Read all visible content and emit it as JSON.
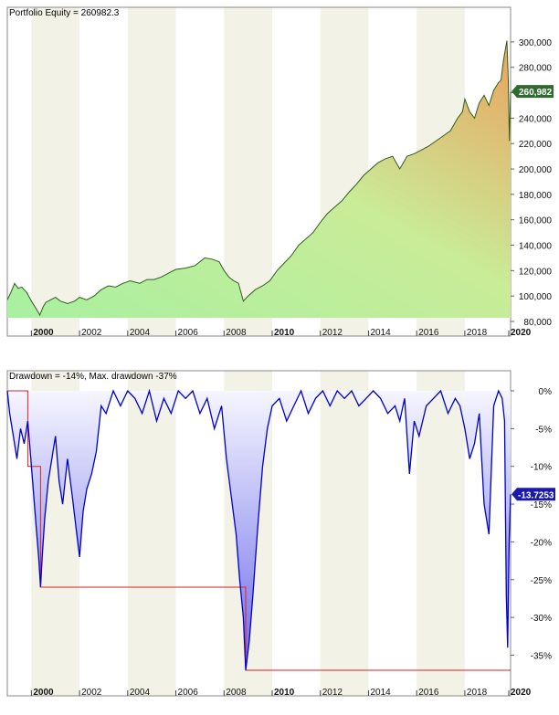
{
  "chart_data": [
    {
      "type": "area",
      "title": "Portfolio Equity = 260982.3",
      "xlabel": "",
      "ylabel": "",
      "xlim": [
        1999.0,
        2019.9
      ],
      "ylim": [
        80000,
        310000
      ],
      "yticks": [
        80000,
        100000,
        120000,
        140000,
        160000,
        180000,
        200000,
        220000,
        240000,
        260000,
        280000,
        300000
      ],
      "ytick_labels": [
        "80,000",
        "100,000",
        "120,000",
        "140,000",
        "160,000",
        "180,000",
        "200,000",
        "220,000",
        "240,000",
        "260,000",
        "280,000",
        "300,000"
      ],
      "xticks": [
        2000,
        2002,
        2004,
        2006,
        2008,
        2010,
        2012,
        2014,
        2016,
        2018,
        2020
      ],
      "xtick_labels": [
        "2000",
        "2002",
        "2004",
        "2006",
        "2008",
        "2010",
        "2012",
        "2014",
        "2016",
        "2018",
        "2020"
      ],
      "grid": false,
      "last_value_label": "260,982",
      "colors": {
        "line": "#2f5f1f",
        "fill_low": "#a8f0a0",
        "fill_high": "#e8a862",
        "badge": "#2f6b2f"
      },
      "series": [
        {
          "x": [
            1999.0,
            1999.15,
            1999.3,
            1999.45,
            1999.6,
            1999.8,
            2000.0,
            2000.2,
            2000.35,
            2000.5,
            2000.6,
            2000.8,
            2001.0,
            2001.2,
            2001.5,
            2001.8,
            2002.0,
            2002.3,
            2002.6,
            2002.9,
            2003.2,
            2003.5,
            2003.8,
            2004.1,
            2004.5,
            2004.8,
            2005.1,
            2005.4,
            2005.7,
            2006.0,
            2006.4,
            2006.8,
            2007.2,
            2007.5,
            2007.8,
            2008.0,
            2008.2,
            2008.4,
            2008.6,
            2008.8,
            2009.0,
            2009.3,
            2009.6,
            2009.9,
            2010.2,
            2010.5,
            2010.8,
            2011.1,
            2011.4,
            2011.7,
            2012.0,
            2012.3,
            2012.6,
            2012.9,
            2013.2,
            2013.5,
            2013.8,
            2014.1,
            2014.4,
            2014.7,
            2015.0,
            2015.3,
            2015.6,
            2015.9,
            2016.2,
            2016.5,
            2016.8,
            2017.1,
            2017.4,
            2017.7,
            2017.9,
            2018.0,
            2018.2,
            2018.4,
            2018.6,
            2018.8,
            2019.0,
            2019.2,
            2019.4,
            2019.5,
            2019.6,
            2019.7,
            2019.75,
            2019.8,
            2019.85,
            2019.9
          ],
          "y": [
            97000,
            103000,
            110000,
            106000,
            107000,
            103000,
            96000,
            90000,
            85000,
            92000,
            95000,
            97000,
            99000,
            96000,
            94000,
            96000,
            99000,
            97000,
            100000,
            105000,
            108000,
            107000,
            110000,
            112000,
            110000,
            113000,
            113000,
            115000,
            118000,
            121000,
            122000,
            124000,
            130000,
            129000,
            127000,
            120000,
            115000,
            112000,
            110000,
            96000,
            100000,
            105000,
            108000,
            112000,
            120000,
            126000,
            132000,
            140000,
            145000,
            150000,
            158000,
            165000,
            170000,
            175000,
            182000,
            188000,
            195000,
            200000,
            205000,
            208000,
            210000,
            200000,
            210000,
            212000,
            215000,
            218000,
            222000,
            226000,
            230000,
            240000,
            245000,
            255000,
            245000,
            240000,
            252000,
            258000,
            250000,
            262000,
            268000,
            270000,
            285000,
            296000,
            301000,
            272000,
            222000,
            261000
          ]
        }
      ]
    },
    {
      "type": "area",
      "title": "Drawdown = -14%, Max. drawdown -37%",
      "xlabel": "",
      "ylabel": "",
      "xlim": [
        1999.0,
        2019.9
      ],
      "ylim": [
        -37,
        0
      ],
      "yticks": [
        0,
        -5,
        -10,
        -15,
        -20,
        -25,
        -30,
        -35
      ],
      "ytick_labels": [
        "0%",
        "-5%",
        "-10%",
        "-15%",
        "-20%",
        "-25%",
        "-30%",
        "-35%"
      ],
      "xticks": [
        2000,
        2002,
        2004,
        2006,
        2008,
        2010,
        2012,
        2014,
        2016,
        2018,
        2020
      ],
      "xtick_labels": [
        "2000",
        "2002",
        "2004",
        "2006",
        "2008",
        "2010",
        "2012",
        "2014",
        "2016",
        "2018",
        "2020"
      ],
      "grid": false,
      "last_value_label": "-13.7253",
      "colors": {
        "line": "#0000cc",
        "fill_top": "#f4f4ff",
        "fill_bottom": "#6b6bea",
        "max_line": "#dd2222",
        "badge": "#1a1aaa"
      },
      "series": [
        {
          "name": "Drawdown",
          "x": [
            1999.0,
            1999.1,
            1999.25,
            1999.4,
            1999.55,
            1999.7,
            1999.85,
            2000.0,
            2000.1,
            2000.2,
            2000.3,
            2000.38,
            2000.45,
            2000.55,
            2000.7,
            2000.85,
            2001.0,
            2001.15,
            2001.3,
            2001.5,
            2001.7,
            2001.85,
            2002.0,
            2002.15,
            2002.3,
            2002.5,
            2002.7,
            2002.9,
            2003.1,
            2003.4,
            2003.7,
            2004.0,
            2004.3,
            2004.6,
            2004.9,
            2005.2,
            2005.5,
            2005.8,
            2006.1,
            2006.4,
            2006.7,
            2007.0,
            2007.3,
            2007.6,
            2007.9,
            2008.1,
            2008.3,
            2008.5,
            2008.65,
            2008.8,
            2008.9,
            2009.05,
            2009.2,
            2009.4,
            2009.6,
            2009.8,
            2010.0,
            2010.3,
            2010.6,
            2010.9,
            2011.2,
            2011.5,
            2011.8,
            2012.1,
            2012.4,
            2012.7,
            2013.0,
            2013.3,
            2013.6,
            2013.9,
            2014.2,
            2014.5,
            2014.8,
            2015.1,
            2015.3,
            2015.5,
            2015.7,
            2015.9,
            2016.1,
            2016.4,
            2016.7,
            2017.0,
            2017.3,
            2017.6,
            2017.8,
            2018.0,
            2018.2,
            2018.4,
            2018.6,
            2018.8,
            2019.0,
            2019.2,
            2019.4,
            2019.55,
            2019.65,
            2019.72,
            2019.78,
            2019.84,
            2019.9
          ],
          "y": [
            0,
            -3,
            -6,
            -9,
            -5,
            -7,
            -4,
            -10,
            -14,
            -18,
            -22,
            -26,
            -22,
            -17,
            -12,
            -9,
            -6,
            -12,
            -15,
            -9,
            -14,
            -18,
            -22,
            -16,
            -13,
            -11,
            -8,
            -2,
            -3,
            0,
            -2,
            0,
            -1,
            -3,
            0,
            -4,
            -1,
            -3,
            0,
            -1,
            0,
            -3,
            -1,
            -5,
            -2,
            -9,
            -14,
            -19,
            -25,
            -30,
            -37,
            -33,
            -27,
            -18,
            -10,
            -5,
            -2,
            -1,
            -4,
            -2,
            0,
            -3,
            -1,
            0,
            -2,
            0,
            -1,
            0,
            -2,
            -1,
            0,
            -1,
            -3,
            -2,
            -4,
            -1,
            -11,
            -4,
            -6,
            -2,
            -1,
            0,
            -3,
            -1,
            -2,
            -5,
            -9,
            -7,
            -3,
            -15,
            -19,
            -2,
            0,
            -1,
            -4,
            -27,
            -34,
            -20,
            -13.7
          ]
        },
        {
          "name": "Max. drawdown",
          "x": [
            1999.0,
            1999.85,
            1999.85,
            2000.38,
            2000.38,
            2008.9,
            2008.9,
            2019.9
          ],
          "y": [
            0,
            0,
            -10,
            -10,
            -26,
            -26,
            -37,
            -37
          ]
        }
      ]
    }
  ]
}
